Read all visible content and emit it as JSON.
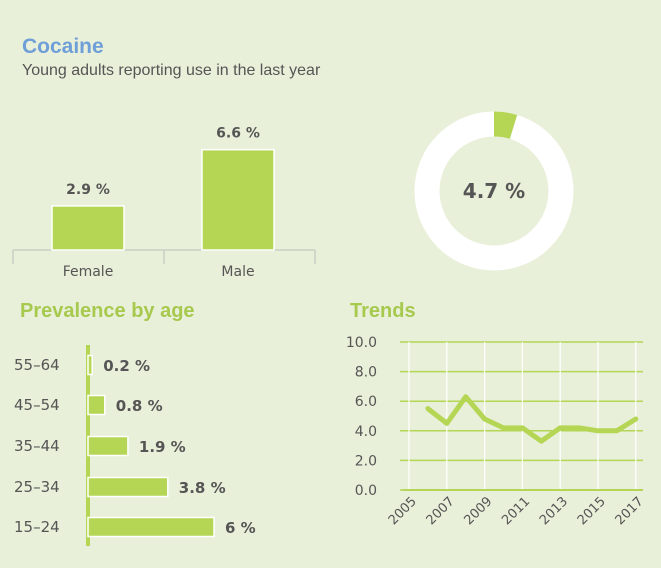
{
  "header": {
    "title": "Cocaine",
    "subtitle": "Young adults reporting use in the last year"
  },
  "colors": {
    "bar": "#b5d654",
    "bar_stroke": "#ffffff",
    "label": "#555555",
    "axis": "#c8d0c8",
    "donut_bg": "#ffffff",
    "section_title": "#a6c94e",
    "title": "#6f9fd8"
  },
  "sections": {
    "age_title": "Prevalence by age",
    "trends_title": "Trends"
  },
  "chart_data": [
    {
      "type": "bar",
      "id": "gender",
      "categories": [
        "Female",
        "Male"
      ],
      "values": [
        2.9,
        6.6
      ],
      "value_labels": [
        "2.9 %",
        "6.6 %"
      ]
    },
    {
      "type": "pie",
      "id": "overall",
      "style": "donut",
      "value": 4.7,
      "center_label": "4.7 %"
    },
    {
      "type": "bar",
      "id": "age",
      "orientation": "horizontal",
      "categories": [
        "55–64",
        "45–54",
        "35–44",
        "25–34",
        "15–24"
      ],
      "values": [
        0.2,
        0.8,
        1.9,
        3.8,
        6
      ],
      "value_labels": [
        "0.2 %",
        "0.8 %",
        "1.9 %",
        "3.8 %",
        "6 %"
      ]
    },
    {
      "type": "line",
      "id": "trends",
      "x": [
        2006,
        2007,
        2008,
        2009,
        2010,
        2011,
        2012,
        2013,
        2014,
        2015,
        2016,
        2017
      ],
      "y": [
        5.5,
        4.5,
        6.3,
        4.8,
        4.2,
        4.2,
        3.3,
        4.2,
        4.2,
        4.0,
        4.0,
        4.8
      ],
      "xticks": [
        "2005",
        "2007",
        "2009",
        "2011",
        "2013",
        "2015",
        "2017"
      ],
      "yticks": [
        "0.0",
        "2.0",
        "4.0",
        "6.0",
        "8.0",
        "10.0"
      ],
      "ylim": [
        0,
        10
      ],
      "xlim": [
        2005,
        2017
      ],
      "grid": true
    }
  ]
}
